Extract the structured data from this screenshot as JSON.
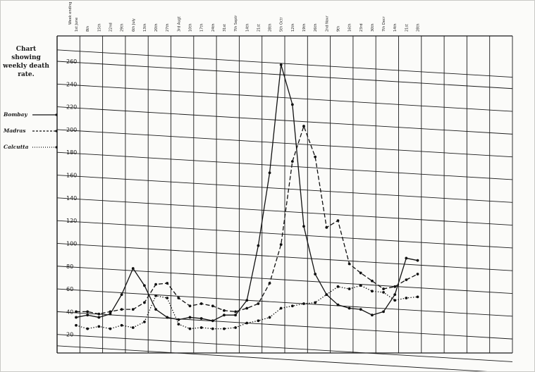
{
  "chart_data": {
    "type": "line",
    "title": "Chart showing weekly death rate.",
    "title_lines": [
      "Chart showing",
      "weekly death rate."
    ],
    "x_header": "Week ending",
    "x": [
      "1st June",
      "8th",
      "15th",
      "22nd",
      "29th",
      "6th July",
      "13th",
      "20th",
      "27th",
      "3rd Augt",
      "10th",
      "17th",
      "24th",
      "31st",
      "7th Septr",
      "14th",
      "21st",
      "28th",
      "5th Octr",
      "12th",
      "19th",
      "26th",
      "2nd Novr",
      "9th",
      "16th",
      "23rd",
      "30th",
      "7th Decr",
      "14th",
      "21st",
      "28th"
    ],
    "ylim": [
      10,
      270
    ],
    "yticks": [
      20,
      40,
      60,
      80,
      100,
      120,
      140,
      160,
      180,
      200,
      220,
      240,
      260
    ],
    "grid": true,
    "legend_position": "left",
    "series": [
      {
        "name": "Bombay",
        "style": "solid",
        "values": [
          35,
          37,
          35,
          38,
          55,
          78,
          63,
          42,
          35,
          33,
          35,
          34,
          32,
          37,
          37,
          50,
          98,
          162,
          257,
          222,
          115,
          73,
          55,
          46,
          43,
          42,
          37,
          40,
          55,
          87,
          85
        ]
      },
      {
        "name": "Madras",
        "style": "dashed",
        "values": [
          40,
          40,
          38,
          40,
          42,
          42,
          48,
          64,
          65,
          52,
          45,
          47,
          45,
          41,
          40,
          43,
          47,
          65,
          99,
          172,
          203,
          176,
          114,
          120,
          82,
          74,
          67,
          60,
          62,
          68,
          73
        ]
      },
      {
        "name": "Calcutta",
        "style": "dotted",
        "values": [
          28,
          25,
          27,
          25,
          28,
          26,
          31,
          54,
          52,
          29,
          25,
          26,
          25,
          25,
          26,
          30,
          32,
          35,
          43,
          45,
          47,
          48,
          55,
          62,
          60,
          63,
          58,
          57,
          50,
          52,
          53
        ]
      }
    ]
  }
}
